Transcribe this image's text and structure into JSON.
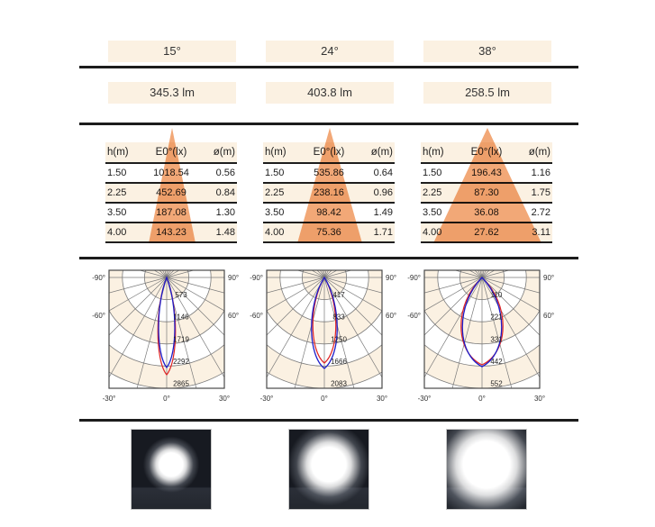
{
  "colors": {
    "cream": "#fbf1e2",
    "cone": "#f2a877",
    "rule": "#1c1c1c",
    "grid": "#7a7a7a",
    "frame": "#4a4a4a",
    "curve_red": "#e02424",
    "curve_blue": "#1d1dc9",
    "text": "#222222",
    "photo_bg": "#171a21",
    "photo_floor": "#2b2f38"
  },
  "polar_axis_labels": {
    "left_top": "-90°",
    "right_top": "90°",
    "left_mid": "-60°",
    "right_mid": "60°",
    "bottom_left": "-30°",
    "bottom_center": "0°",
    "bottom_right": "30°"
  },
  "columns": [
    {
      "beam_angle": "15°",
      "flux": "345.3 lm",
      "table": {
        "headers": [
          "h(m)",
          "E0°(lx)",
          "ø(m)"
        ],
        "rows": [
          [
            "1.50",
            "1018.54",
            "0.56"
          ],
          [
            "2.25",
            "452.69",
            "0.84"
          ],
          [
            "3.50",
            "187.08",
            "1.30"
          ],
          [
            "4.00",
            "143.23",
            "1.48"
          ]
        ]
      },
      "polar": {
        "ring_labels": [
          "573",
          "1146",
          "1719",
          "2292",
          "2865"
        ],
        "red_lobe": {
          "len": 108,
          "w": 13
        },
        "blue_lobe": {
          "len": 100,
          "w": 12
        }
      },
      "cone_half_width": 26,
      "photo_spot_radius": 13
    },
    {
      "beam_angle": "24°",
      "flux": "403.8 lm",
      "table": {
        "headers": [
          "h(m)",
          "E0°(lx)",
          "ø(m)"
        ],
        "rows": [
          [
            "1.50",
            "535.86",
            "0.64"
          ],
          [
            "2.25",
            "238.16",
            "0.96"
          ],
          [
            "3.50",
            "98.42",
            "1.49"
          ],
          [
            "4.00",
            "75.36",
            "1.71"
          ]
        ]
      },
      "polar": {
        "ring_labels": [
          "417",
          "833",
          "1250",
          "1666",
          "2083"
        ],
        "red_lobe": {
          "len": 95,
          "w": 17
        },
        "blue_lobe": {
          "len": 101,
          "w": 19
        }
      },
      "cone_half_width": 36,
      "photo_spot_radius": 19
    },
    {
      "beam_angle": "38°",
      "flux": "258.5 lm",
      "table": {
        "headers": [
          "h(m)",
          "E0°(lx)",
          "ø(m)"
        ],
        "rows": [
          [
            "1.50",
            "196.43",
            "1.16"
          ],
          [
            "2.25",
            "87.30",
            "1.75"
          ],
          [
            "3.50",
            "36.08",
            "2.72"
          ],
          [
            "4.00",
            "27.62",
            "3.11"
          ]
        ]
      },
      "polar": {
        "ring_labels": [
          "110",
          "221",
          "331",
          "442",
          "552"
        ],
        "red_lobe": {
          "len": 97,
          "w": 31
        },
        "blue_lobe": {
          "len": 99,
          "w": 29
        }
      },
      "cone_half_width": 60,
      "photo_spot_radius": 26
    }
  ]
}
